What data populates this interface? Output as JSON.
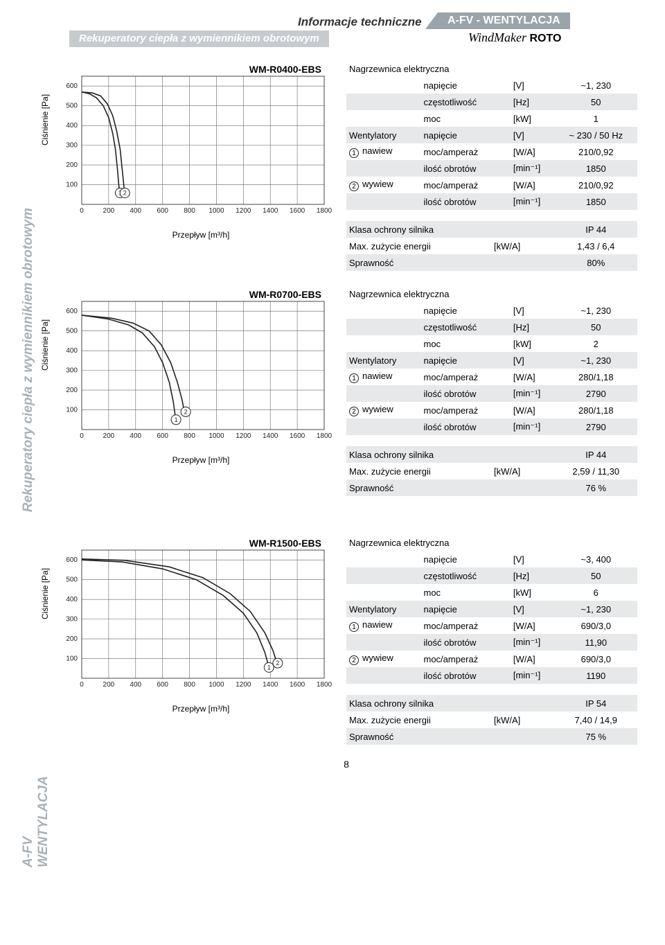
{
  "header": {
    "tech": "Informacje techniczne",
    "category": "A-FV - WENTYLACJA",
    "subtitle_left": "Rekuperatory ciepła z wymiennikiem obrotowym",
    "brand": "WindMaker",
    "brand_suffix": "ROTO"
  },
  "side_labels": {
    "top": "Rekuperatory ciepła z wymiennikiem obrotowym",
    "bottom": "A-FV WENTYLACJA"
  },
  "axis": {
    "ylabel": "Ciśnienie [Pa]",
    "xlabel": "Przepływ [m³/h]",
    "xticks": [
      0,
      200,
      400,
      600,
      800,
      1000,
      1200,
      1400,
      1600,
      1800
    ],
    "yticks": [
      100,
      200,
      300,
      400,
      500,
      600
    ],
    "xlim": [
      0,
      1800
    ],
    "ylim": [
      0,
      650
    ],
    "grid_color": "#666666",
    "curve_color": "#222222",
    "curve_width": 1.6,
    "bg": "#ffffff"
  },
  "blocks": [
    {
      "title": "WM-R0400-EBS",
      "curves": [
        {
          "marker": "1",
          "marker_x": 285,
          "marker_y": 58,
          "pts": [
            [
              0,
              570
            ],
            [
              60,
              560
            ],
            [
              110,
              540
            ],
            [
              160,
              500
            ],
            [
              200,
              440
            ],
            [
              230,
              360
            ],
            [
              250,
              280
            ],
            [
              265,
              180
            ],
            [
              275,
              100
            ],
            [
              283,
              40
            ]
          ]
        },
        {
          "marker": "2",
          "marker_x": 320,
          "marker_y": 58,
          "pts": [
            [
              0,
              570
            ],
            [
              80,
              565
            ],
            [
              140,
              550
            ],
            [
              190,
              510
            ],
            [
              230,
              450
            ],
            [
              260,
              370
            ],
            [
              285,
              280
            ],
            [
              300,
              180
            ],
            [
              312,
              100
            ],
            [
              318,
              40
            ]
          ]
        }
      ],
      "spec": {
        "heater_title": "Nagrzewnica elektryczna",
        "heater": [
          {
            "prop": "napięcie",
            "unit": "[V]",
            "val": "~1, 230",
            "shade": false
          },
          {
            "prop": "częstotliwość",
            "unit": "[Hz]",
            "val": "50",
            "shade": true
          },
          {
            "prop": "moc",
            "unit": "[kW]",
            "val": "1",
            "shade": false
          }
        ],
        "fan_label": "Wentylatory",
        "fan_head": {
          "prop": "napięcie",
          "unit": "[V]",
          "val": "~ 230 / 50 Hz"
        },
        "fan1_label": "nawiew",
        "fan1": [
          {
            "prop": "moc/amperaż",
            "unit": "[W/A]",
            "val": "210/0,92",
            "shade": false
          },
          {
            "prop": "ilość obrotów",
            "unit": "[min⁻¹]",
            "val": "1850",
            "shade": true
          }
        ],
        "fan2_label": "wywiew",
        "fan2": [
          {
            "prop": "moc/amperaż",
            "unit": "[W/A]",
            "val": "210/0,92",
            "shade": false
          },
          {
            "prop": "ilość obrotów",
            "unit": "[min⁻¹]",
            "val": "1850",
            "shade": true
          }
        ],
        "bottom": [
          {
            "label": "Klasa ochrony silnika",
            "unit": "",
            "val": "IP 44",
            "shade": true
          },
          {
            "label": "Max. zużycie energii",
            "unit": "[kW/A]",
            "val": "1,43 / 6,4",
            "shade": false
          },
          {
            "label": "Sprawność",
            "unit": "",
            "val": "80%",
            "shade": true
          }
        ]
      }
    },
    {
      "title": "WM-R0700-EBS",
      "curves": [
        {
          "marker": "1",
          "marker_x": 700,
          "marker_y": 50,
          "pts": [
            [
              0,
              580
            ],
            [
              200,
              560
            ],
            [
              350,
              530
            ],
            [
              450,
              490
            ],
            [
              540,
              420
            ],
            [
              600,
              340
            ],
            [
              650,
              240
            ],
            [
              680,
              140
            ],
            [
              698,
              50
            ]
          ]
        },
        {
          "marker": "2",
          "marker_x": 772,
          "marker_y": 90,
          "pts": [
            [
              0,
              580
            ],
            [
              220,
              565
            ],
            [
              380,
              540
            ],
            [
              500,
              500
            ],
            [
              590,
              430
            ],
            [
              660,
              340
            ],
            [
              710,
              240
            ],
            [
              745,
              150
            ],
            [
              765,
              80
            ]
          ]
        }
      ],
      "spec": {
        "heater_title": "Nagrzewnica elektryczna",
        "heater": [
          {
            "prop": "napięcie",
            "unit": "[V]",
            "val": "~1, 230",
            "shade": false
          },
          {
            "prop": "częstotliwość",
            "unit": "[Hz]",
            "val": "50",
            "shade": true
          },
          {
            "prop": "moc",
            "unit": "[kW]",
            "val": "2",
            "shade": false
          }
        ],
        "fan_label": "Wentylatory",
        "fan_head": {
          "prop": "napięcie",
          "unit": "[V]",
          "val": "~1, 230"
        },
        "fan1_label": "nawiew",
        "fan1": [
          {
            "prop": "moc/amperaż",
            "unit": "[W/A]",
            "val": "280/1,18",
            "shade": false
          },
          {
            "prop": "ilość obrotów",
            "unit": "[min⁻¹]",
            "val": "2790",
            "shade": true
          }
        ],
        "fan2_label": "wywiew",
        "fan2": [
          {
            "prop": "moc/amperaż",
            "unit": "[W/A]",
            "val": "280/1,18",
            "shade": false
          },
          {
            "prop": "ilość obrotów",
            "unit": "[min⁻¹]",
            "val": "2790",
            "shade": true
          }
        ],
        "bottom": [
          {
            "label": "Klasa ochrony silnika",
            "unit": "",
            "val": "IP 44",
            "shade": true
          },
          {
            "label": "Max. zużycie energii",
            "unit": "[kW/A]",
            "val": "2,59 / 11,30",
            "shade": false
          },
          {
            "label": "Sprawność",
            "unit": "",
            "val": "76 %",
            "shade": true
          }
        ]
      }
    },
    {
      "title": "WM-R1500-EBS",
      "curves": [
        {
          "marker": "1",
          "marker_x": 1390,
          "marker_y": 55,
          "pts": [
            [
              0,
              600
            ],
            [
              300,
              590
            ],
            [
              600,
              555
            ],
            [
              850,
              500
            ],
            [
              1050,
              420
            ],
            [
              1200,
              330
            ],
            [
              1300,
              230
            ],
            [
              1360,
              130
            ],
            [
              1390,
              55
            ]
          ]
        },
        {
          "marker": "2",
          "marker_x": 1455,
          "marker_y": 77,
          "pts": [
            [
              0,
              605
            ],
            [
              320,
              598
            ],
            [
              650,
              565
            ],
            [
              900,
              510
            ],
            [
              1100,
              430
            ],
            [
              1250,
              340
            ],
            [
              1360,
              230
            ],
            [
              1420,
              140
            ],
            [
              1450,
              75
            ]
          ]
        }
      ],
      "spec": {
        "heater_title": "Nagrzewnica elektryczna",
        "heater": [
          {
            "prop": "napięcie",
            "unit": "[V]",
            "val": "~3, 400",
            "shade": false
          },
          {
            "prop": "częstotliwość",
            "unit": "[Hz]",
            "val": "50",
            "shade": true
          },
          {
            "prop": "moc",
            "unit": "[kW]",
            "val": "6",
            "shade": false
          }
        ],
        "fan_label": "Wentylatory",
        "fan_head": {
          "prop": "napięcie",
          "unit": "[V]",
          "val": "~1, 230"
        },
        "fan1_label": "nawiew",
        "fan1": [
          {
            "prop": "moc/amperaż",
            "unit": "[W/A]",
            "val": "690/3,0",
            "shade": false
          },
          {
            "prop": "ilość obrotów",
            "unit": "[min⁻¹]",
            "val": "11,90",
            "shade": true
          }
        ],
        "fan2_label": "wywiew",
        "fan2": [
          {
            "prop": "moc/amperaż",
            "unit": "[W/A]",
            "val": "690/3,0",
            "shade": false
          },
          {
            "prop": "ilość obrotów",
            "unit": "[min⁻¹]",
            "val": "1190",
            "shade": true
          }
        ],
        "bottom": [
          {
            "label": "Klasa ochrony silnika",
            "unit": "",
            "val": "IP 54",
            "shade": true
          },
          {
            "label": "Max. zużycie energii",
            "unit": "[kW/A]",
            "val": "7,40 / 14,9",
            "shade": false
          },
          {
            "label": "Sprawność",
            "unit": "",
            "val": "75 %",
            "shade": true
          }
        ]
      }
    }
  ],
  "page_number": "8"
}
